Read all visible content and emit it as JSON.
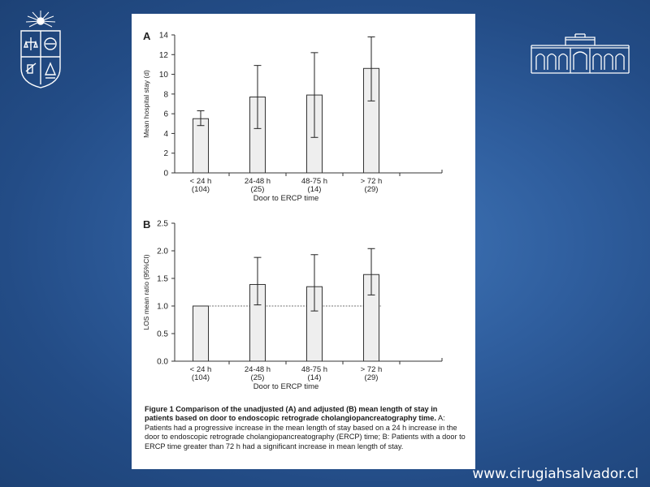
{
  "website": "www.cirugiahsalvador.cl",
  "logos": {
    "left": "university-crest-icon",
    "right": "hospital-building-icon"
  },
  "colors": {
    "background": "#2f5e9e",
    "bar_fill": "#eeeeee",
    "bar_stroke": "#333333"
  },
  "caption": {
    "title": "Figure 1 Comparison of the unadjusted (A) and adjusted (B) mean length of stay in patients based on door to endoscopic retrograde cholangiopancreatography time.",
    "body": "A: Patients had a progressive increase in the mean length of stay based on a 24 h increase in the door to endoscopic retrograde cholangiopancreatography (ERCP) time; B: Patients with a door to ERCP time greater than 72 h had a significant increase in mean length of stay."
  },
  "chart_data": [
    {
      "type": "bar",
      "panel_label": "A",
      "categories": [
        "< 24 h",
        "24-48 h",
        "48-75 h",
        "> 72 h"
      ],
      "category_counts": [
        "(104)",
        "(25)",
        "(14)",
        "(29)"
      ],
      "values": [
        5.5,
        7.7,
        7.9,
        10.6
      ],
      "error_low": [
        4.8,
        4.5,
        3.6,
        7.3
      ],
      "error_high": [
        6.3,
        10.9,
        12.2,
        13.8
      ],
      "xlabel": "Door to ERCP time",
      "ylabel": "Mean hospital stay (d)",
      "ylim": [
        0,
        14
      ],
      "yticks": [
        "0",
        "2",
        "4",
        "6",
        "8",
        "10",
        "12",
        "14"
      ],
      "grid": false
    },
    {
      "type": "bar",
      "panel_label": "B",
      "categories": [
        "< 24 h",
        "24-48 h",
        "48-75 h",
        "> 72 h"
      ],
      "category_counts": [
        "(104)",
        "(25)",
        "(14)",
        "(29)"
      ],
      "values": [
        1.0,
        1.39,
        1.35,
        1.57
      ],
      "error_low": [
        1.0,
        1.02,
        0.91,
        1.2
      ],
      "error_high": [
        1.0,
        1.88,
        1.93,
        2.04
      ],
      "reference_line": 1.0,
      "xlabel": "Door to ERCP time",
      "ylabel": "LOS mean ratio (95%CI)",
      "ylim": [
        0,
        2.5
      ],
      "yticks": [
        "0.0",
        "0.5",
        "1.0",
        "1.5",
        "2.0",
        "2.5"
      ],
      "grid": false
    }
  ]
}
